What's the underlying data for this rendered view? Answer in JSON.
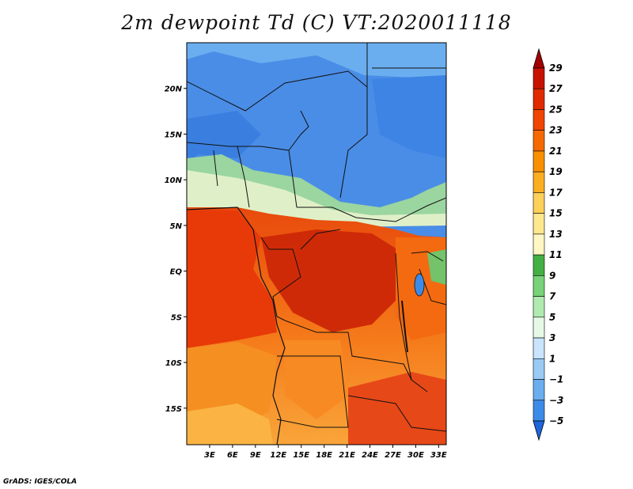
{
  "title": "2m dewpoint Td (C) VT:2020011118",
  "credit": "GrADS: IGES/COLA",
  "map": {
    "lon_range": [
      0,
      34
    ],
    "lat_range": [
      -19,
      25
    ],
    "lat_ticks": [
      {
        "value": 20,
        "label": "20N"
      },
      {
        "value": 15,
        "label": "15N"
      },
      {
        "value": 10,
        "label": "10N"
      },
      {
        "value": 5,
        "label": "5N"
      },
      {
        "value": 0,
        "label": "EQ"
      },
      {
        "value": -5,
        "label": "5S"
      },
      {
        "value": -10,
        "label": "10S"
      },
      {
        "value": -15,
        "label": "15S"
      }
    ],
    "lon_ticks": [
      {
        "value": 3,
        "label": "3E"
      },
      {
        "value": 6,
        "label": "6E"
      },
      {
        "value": 9,
        "label": "9E"
      },
      {
        "value": 12,
        "label": "12E"
      },
      {
        "value": 15,
        "label": "15E"
      },
      {
        "value": 18,
        "label": "18E"
      },
      {
        "value": 21,
        "label": "21E"
      },
      {
        "value": 24,
        "label": "24E"
      },
      {
        "value": 27,
        "label": "27E"
      },
      {
        "value": 30,
        "label": "30E"
      },
      {
        "value": 33,
        "label": "33E"
      }
    ]
  },
  "colorbar": {
    "levels": [
      "29",
      "27",
      "25",
      "23",
      "21",
      "19",
      "17",
      "15",
      "13",
      "11",
      "9",
      "7",
      "5",
      "3",
      "1",
      "−1",
      "−3",
      "−5"
    ],
    "colors": [
      "#a50000",
      "#c81200",
      "#e02a00",
      "#ef4500",
      "#f56a00",
      "#f89000",
      "#fbae22",
      "#fdd05a",
      "#fde88f",
      "#fef7c3",
      "#43b043",
      "#78d278",
      "#b0eab0",
      "#e6f8e6",
      "#c9e4fb",
      "#99cbf5",
      "#6aaef0",
      "#3d8be8",
      "#1f66dd"
    ]
  }
}
